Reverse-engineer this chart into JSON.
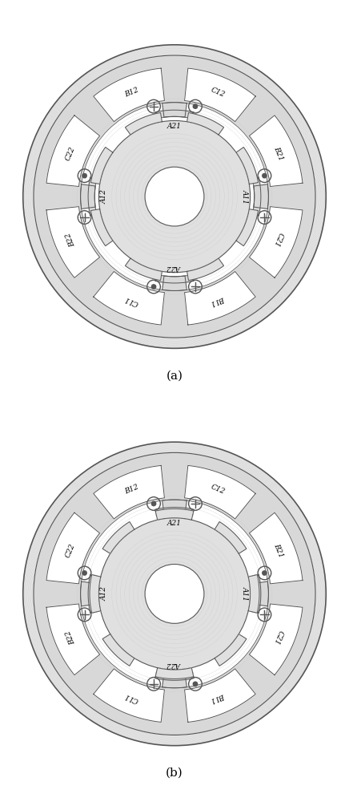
{
  "fig_width": 4.36,
  "fig_height": 10.0,
  "dpi": 100,
  "bg_color": "#ffffff",
  "lc": "#555555",
  "stator_fill": "#d8d8d8",
  "coil_fill": "#ffffff",
  "rotor_fill": "#e0e0e0",
  "main_pole_angles": [
    90,
    0,
    270,
    180
  ],
  "main_pole_labels": [
    "A21",
    "A11",
    "A22",
    "A12"
  ],
  "slot_angles": [
    112.5,
    67.5,
    22.5,
    337.5,
    292.5,
    247.5,
    202.5,
    157.5
  ],
  "coil_labels": [
    "B12",
    "C12",
    "B21",
    "C21",
    "B11",
    "C11",
    "B22",
    "C22"
  ],
  "sym_angles_a": [
    103,
    77,
    13,
    347,
    257,
    283,
    193,
    167
  ],
  "sym_types_a": [
    "+",
    "o",
    "o",
    "+",
    "o",
    "+",
    "+",
    "o"
  ],
  "sym_angles_b": [
    103,
    77,
    13,
    347,
    257,
    283,
    193,
    167
  ],
  "sym_types_b": [
    "o",
    "+",
    "o",
    "+",
    "+",
    "o",
    "+",
    "o"
  ],
  "rotor_poles_a": [
    67.5,
    22.5,
    337.5,
    292.5,
    247.5,
    202.5,
    157.5,
    112.5
  ],
  "rotor_poles_b": [
    90,
    45,
    0,
    315,
    270,
    225,
    180,
    135
  ],
  "label_a": "(a)",
  "label_b": "(b)"
}
